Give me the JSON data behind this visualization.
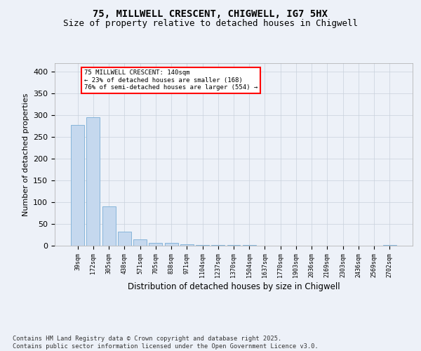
{
  "title1": "75, MILLWELL CRESCENT, CHIGWELL, IG7 5HX",
  "title2": "Size of property relative to detached houses in Chigwell",
  "xlabel": "Distribution of detached houses by size in Chigwell",
  "ylabel": "Number of detached properties",
  "bar_color": "#c5d8ee",
  "bar_edge_color": "#7aaed6",
  "background_color": "#edf1f8",
  "grid_color": "#c8d0dc",
  "categories": [
    "39sqm",
    "172sqm",
    "305sqm",
    "438sqm",
    "571sqm",
    "705sqm",
    "838sqm",
    "971sqm",
    "1104sqm",
    "1237sqm",
    "1370sqm",
    "1504sqm",
    "1637sqm",
    "1770sqm",
    "1903sqm",
    "2036sqm",
    "2169sqm",
    "2303sqm",
    "2436sqm",
    "2569sqm",
    "2702sqm"
  ],
  "values": [
    278,
    295,
    90,
    33,
    15,
    7,
    6,
    3,
    2,
    2,
    2,
    2,
    0,
    0,
    0,
    0,
    0,
    0,
    0,
    0,
    2
  ],
  "ylim": [
    0,
    420
  ],
  "yticks": [
    0,
    50,
    100,
    150,
    200,
    250,
    300,
    350,
    400
  ],
  "annotation_line1": "75 MILLWELL CRESCENT: 140sqm",
  "annotation_line2": "← 23% of detached houses are smaller (168)",
  "annotation_line3": "76% of semi-detached houses are larger (554) →",
  "footer": "Contains HM Land Registry data © Crown copyright and database right 2025.\nContains public sector information licensed under the Open Government Licence v3.0."
}
